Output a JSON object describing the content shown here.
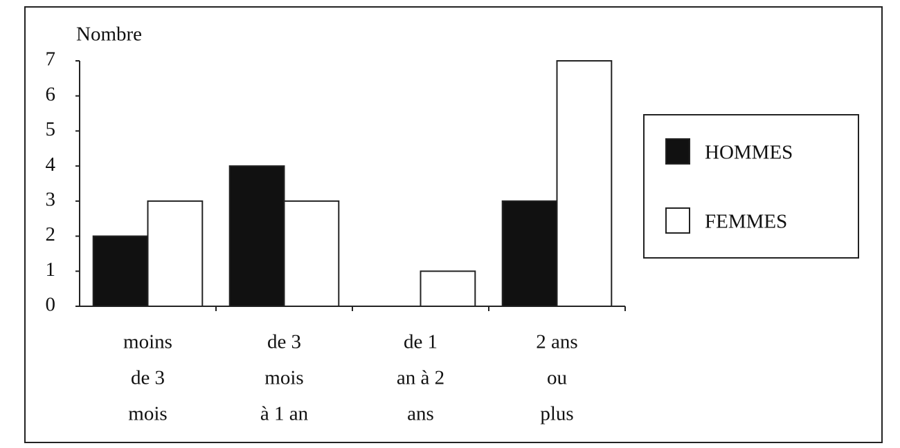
{
  "chart_data": {
    "type": "bar",
    "y_label": "Nombre",
    "categories": [
      [
        "moins",
        "de 3",
        "mois"
      ],
      [
        "de 3",
        "mois",
        "à 1 an"
      ],
      [
        "de 1",
        "an à 2",
        "ans"
      ],
      [
        "2 ans",
        "ou",
        "plus"
      ]
    ],
    "series": [
      {
        "name": "HOMMES",
        "color": "#111111",
        "values": [
          2,
          4,
          0,
          3
        ]
      },
      {
        "name": "FEMMES",
        "color": "#ffffff",
        "values": [
          3,
          3,
          1,
          7
        ]
      }
    ],
    "ylim": [
      0,
      7
    ],
    "yticks": [
      0,
      1,
      2,
      3,
      4,
      5,
      6,
      7
    ],
    "legend": "right"
  }
}
